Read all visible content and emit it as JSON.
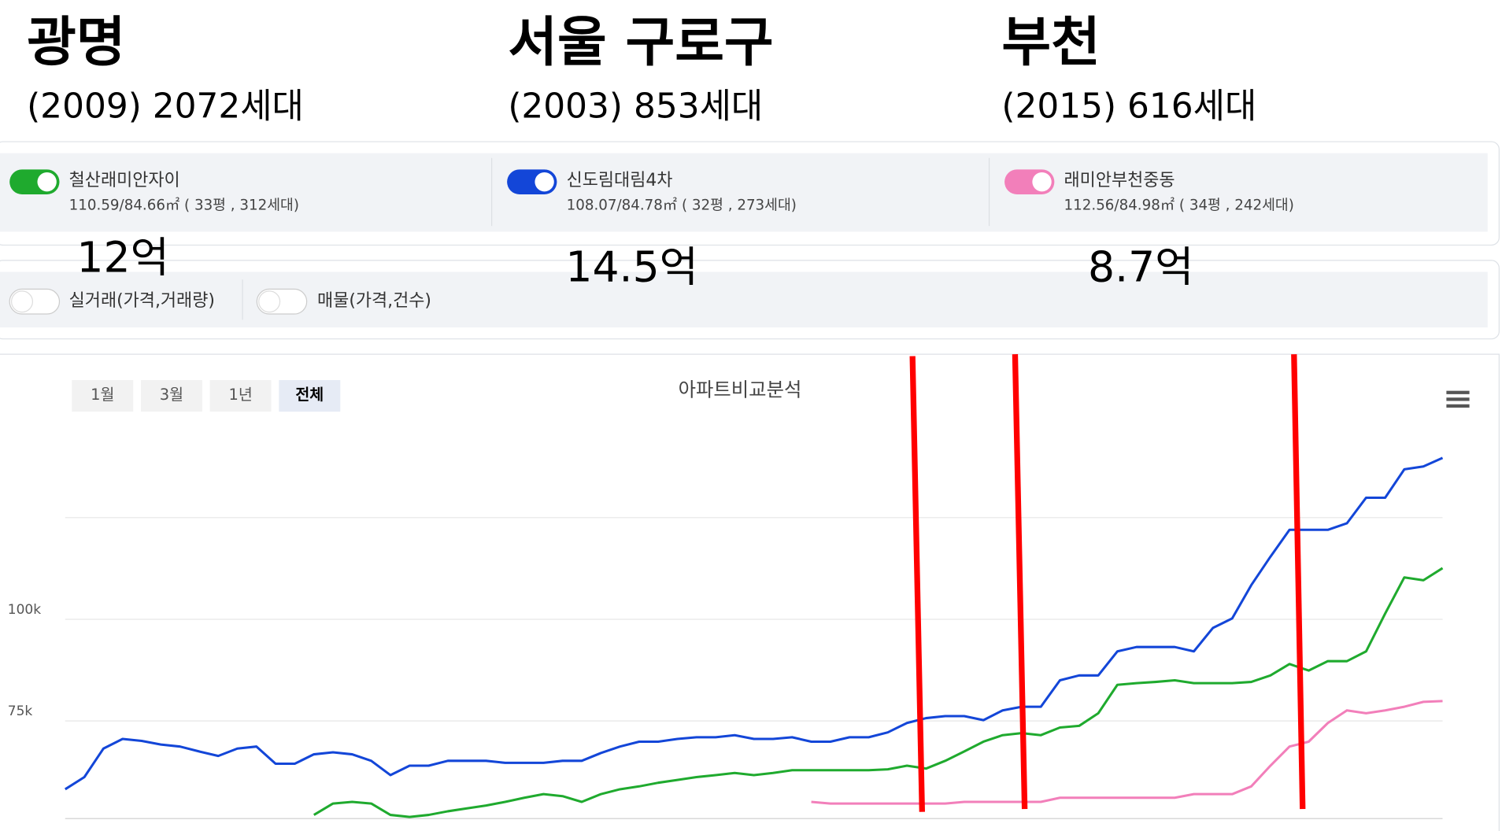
{
  "header": [
    {
      "title": "광명",
      "info": "(2009)  2072세대",
      "price": "12억"
    },
    {
      "title": "서울  구로구",
      "info": "(2003)  853세대",
      "price": "14.5억"
    },
    {
      "title": "부천",
      "info": "(2015)  616세대",
      "price": "8.7억"
    }
  ],
  "filters": [
    "실거래(가격,거래량)",
    "매물(가격,건수)"
  ],
  "ranges": [
    "1월",
    "3월",
    "1년",
    "전체"
  ],
  "chart_data": {
    "type": "line",
    "title": "아파트비교분석",
    "categories": [
      null,
      null,
      null,
      null,
      null,
      null,
      null,
      null,
      null,
      null,
      null,
      null,
      null,
      null,
      null,
      null,
      null,
      null,
      null,
      null,
      null,
      null,
      null,
      null,
      null,
      null,
      null,
      null,
      null,
      null,
      null,
      null,
      null,
      null,
      null,
      null,
      null,
      null,
      null,
      null,
      null,
      null,
      null,
      null,
      null,
      null,
      null,
      null,
      null,
      null,
      null,
      null,
      null,
      null,
      null,
      null,
      null,
      null,
      null,
      null,
      null,
      null,
      null,
      null,
      null,
      null,
      null,
      null,
      null,
      null,
      null,
      null,
      null
    ],
    "ylim": [
      51000,
      144000
    ],
    "yticks": [
      {
        "value": 75000,
        "label": "75k"
      },
      {
        "value": 100000,
        "label": "100k"
      }
    ],
    "grid_lines": [
      75000,
      100000,
      125000
    ],
    "series": [
      {
        "name": "철산래미안자이",
        "spec": "110.59/84.66㎡ ( 33평 , 312세대)",
        "color": "#1faa2e",
        "values": [
          null,
          null,
          null,
          null,
          null,
          null,
          null,
          null,
          null,
          null,
          null,
          null,
          null,
          51900,
          54700,
          55100,
          54700,
          51900,
          51400,
          51900,
          52800,
          53500,
          54200,
          55100,
          56100,
          57000,
          56500,
          55100,
          57000,
          58200,
          58900,
          59800,
          60500,
          61200,
          61700,
          62200,
          61700,
          62200,
          62900,
          62900,
          62900,
          62900,
          62900,
          63100,
          64000,
          63300,
          65200,
          67500,
          69900,
          71500,
          72000,
          71500,
          73400,
          73800,
          76900,
          83900,
          84300,
          84600,
          85000,
          84300,
          84300,
          84300,
          84600,
          86200,
          89000,
          87400,
          89700,
          89700,
          92100,
          101400,
          110300,
          109600,
          112600
        ]
      },
      {
        "name": "신도림대림4차",
        "spec": "108.07/84.78㎡ ( 32평 , 273세대)",
        "color": "#1346d8",
        "values": [
          58200,
          61200,
          68200,
          70600,
          70100,
          69200,
          68700,
          67500,
          66400,
          68200,
          68700,
          64500,
          64500,
          66800,
          67300,
          66800,
          65200,
          61700,
          64000,
          64000,
          65200,
          65200,
          65200,
          64700,
          64700,
          64700,
          65200,
          65200,
          67100,
          68700,
          69900,
          69900,
          70600,
          71000,
          71000,
          71500,
          70600,
          70600,
          71000,
          69900,
          69900,
          71000,
          71000,
          72200,
          74500,
          75700,
          76200,
          76200,
          75200,
          77600,
          78500,
          78500,
          85000,
          86200,
          86200,
          92100,
          93200,
          93200,
          93200,
          92100,
          97900,
          100200,
          108400,
          115400,
          122000,
          122000,
          122000,
          123600,
          129900,
          129900,
          136900,
          137600,
          139700
        ]
      },
      {
        "name": "래미안부천중동",
        "spec": "112.56/84.98㎡ ( 34평 , 242세대)",
        "color": "#f27fba",
        "values": [
          null,
          null,
          null,
          null,
          null,
          null,
          null,
          null,
          null,
          null,
          null,
          null,
          null,
          null,
          null,
          null,
          null,
          null,
          null,
          null,
          null,
          null,
          null,
          null,
          null,
          null,
          null,
          null,
          null,
          null,
          null,
          null,
          null,
          null,
          null,
          null,
          null,
          null,
          null,
          55100,
          54700,
          54700,
          54700,
          54700,
          54700,
          54700,
          54700,
          55100,
          55100,
          55100,
          55100,
          55100,
          56100,
          56100,
          56100,
          56100,
          56100,
          56100,
          56100,
          57000,
          57000,
          57000,
          58900,
          64000,
          68700,
          69900,
          74500,
          77600,
          76900,
          77600,
          78500,
          79700,
          79900
        ]
      }
    ]
  }
}
